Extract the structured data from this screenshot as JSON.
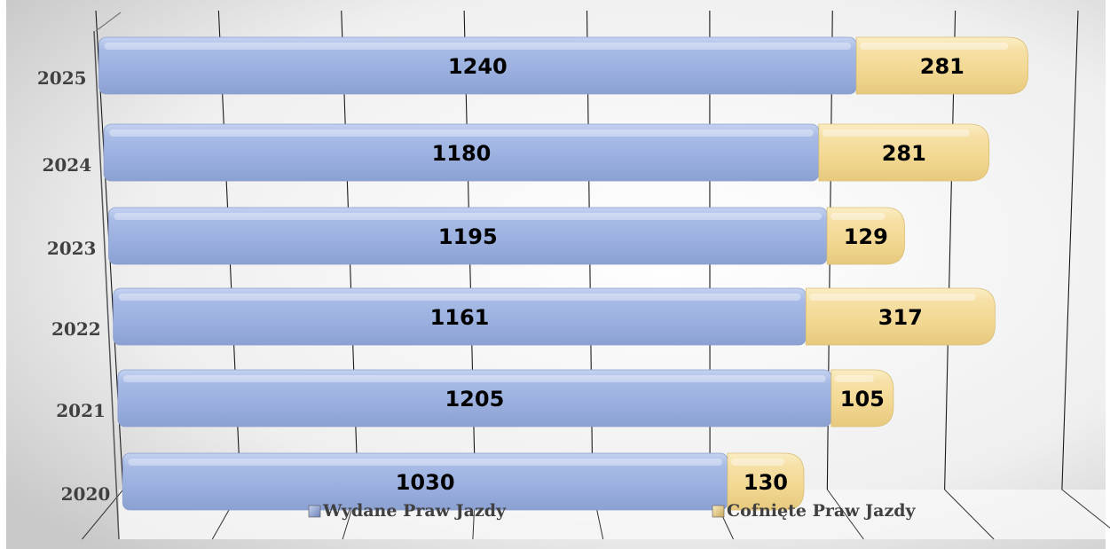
{
  "chart_data": {
    "type": "bar",
    "orientation": "horizontal",
    "stacked": true,
    "categories": [
      "2020",
      "2021",
      "2022",
      "2023",
      "2024",
      "2025"
    ],
    "series": [
      {
        "name": "Wydane Praw Jazdy",
        "values": [
          1030,
          1205,
          1161,
          1195,
          1180,
          1240
        ],
        "color": "#A4B8E4"
      },
      {
        "name": "Cofnięte Praw Jazdy",
        "values": [
          130,
          105,
          317,
          129,
          281,
          281
        ],
        "color": "#F5DD9E"
      }
    ],
    "xlim": [
      0,
      1600
    ],
    "grid": true,
    "legend_position": "bottom",
    "data_labels": true
  }
}
